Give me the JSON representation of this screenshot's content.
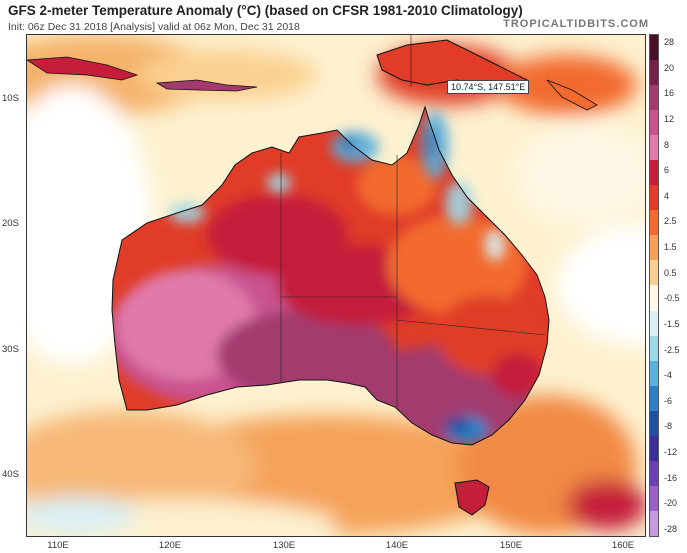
{
  "header": {
    "title": "GFS 2-meter Temperature Anomaly (°C) (based on CFSR 1981-2010 Climatology)",
    "subtitle": "Init: 06z Dec 31 2018   [Analysis]   valid at 06z Mon, Dec 31 2018",
    "brand": "TROPICALTIDBITS.COM"
  },
  "axes": {
    "lat_labels": [
      "10S",
      "20S",
      "30S",
      "40S"
    ],
    "lon_labels": [
      "110E",
      "120E",
      "130E",
      "140E",
      "150E",
      "160E"
    ]
  },
  "probe": {
    "label": "10.74°S, 147.51°E"
  },
  "colorbar": {
    "labels": [
      "28",
      "20",
      "16",
      "12",
      "8",
      "6",
      "4",
      "2.5",
      "1.5",
      "0.5",
      "-0.5",
      "-1.5",
      "-2.5",
      "-4",
      "-6",
      "-8",
      "-12",
      "-16",
      "-20",
      "-28"
    ],
    "colors": [
      "#4a0f2a",
      "#7a1f4a",
      "#a23a6e",
      "#c9538f",
      "#e07aab",
      "#c41e3a",
      "#e03c28",
      "#f26a2e",
      "#f7a05a",
      "#fbd090",
      "#fff8e6",
      "#d8f0f4",
      "#9fd8e6",
      "#5bb0dc",
      "#2f7fc4",
      "#1e4fa0",
      "#3b2f9a",
      "#6b3fb0",
      "#9a62c8",
      "#c89ae0"
    ]
  }
}
